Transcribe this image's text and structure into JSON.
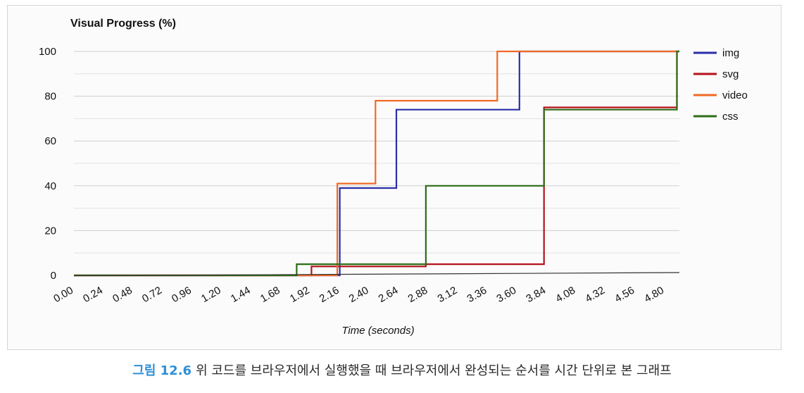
{
  "caption": {
    "number": "그림 12.6",
    "text": "위 코드를 브라우저에서 실행했을 때 브라우저에서 완성되는 순서를 시간 단위로 본 그래프"
  },
  "chart_data": {
    "type": "line",
    "step": true,
    "title": "Visual Progress (%)",
    "xlabel": "Time (seconds)",
    "ylabel": "",
    "xlim": [
      0,
      4.92
    ],
    "ylim": [
      0,
      100
    ],
    "x_ticks": [
      "0.00",
      "0.24",
      "0.48",
      "0.72",
      "0.96",
      "1.20",
      "1.44",
      "1.68",
      "1.92",
      "2.16",
      "2.40",
      "2.64",
      "2.88",
      "3.12",
      "3.36",
      "3.60",
      "3.84",
      "4.08",
      "4.32",
      "4.56",
      "4.80"
    ],
    "y_ticks": [
      0,
      20,
      40,
      60,
      80,
      100
    ],
    "grid": true,
    "legend": "right",
    "series": [
      {
        "name": "img",
        "color": "#2a2fa8",
        "x": [
          0,
          2.16,
          2.16,
          2.62,
          2.62,
          3.62,
          3.62,
          4.92
        ],
        "y": [
          0,
          0,
          39,
          39,
          74,
          74,
          100,
          100
        ]
      },
      {
        "name": "svg",
        "color": "#b5121b",
        "x": [
          0,
          1.93,
          1.93,
          2.86,
          2.86,
          3.82,
          3.82,
          4.9,
          4.9,
          4.92
        ],
        "y": [
          0,
          0,
          4,
          4,
          5,
          5,
          75,
          75,
          100,
          100
        ]
      },
      {
        "name": "video",
        "color": "#f06a24",
        "x": [
          0,
          2.14,
          2.14,
          2.45,
          2.45,
          3.44,
          3.44,
          4.92
        ],
        "y": [
          0,
          0,
          41,
          41,
          78,
          78,
          100,
          100
        ]
      },
      {
        "name": "css",
        "color": "#2c6e18",
        "x": [
          0,
          1.81,
          1.81,
          2.86,
          2.86,
          3.82,
          3.82,
          4.9,
          4.9,
          4.92
        ],
        "y": [
          0,
          0,
          5,
          5,
          40,
          40,
          74,
          74,
          100,
          100
        ]
      }
    ]
  }
}
